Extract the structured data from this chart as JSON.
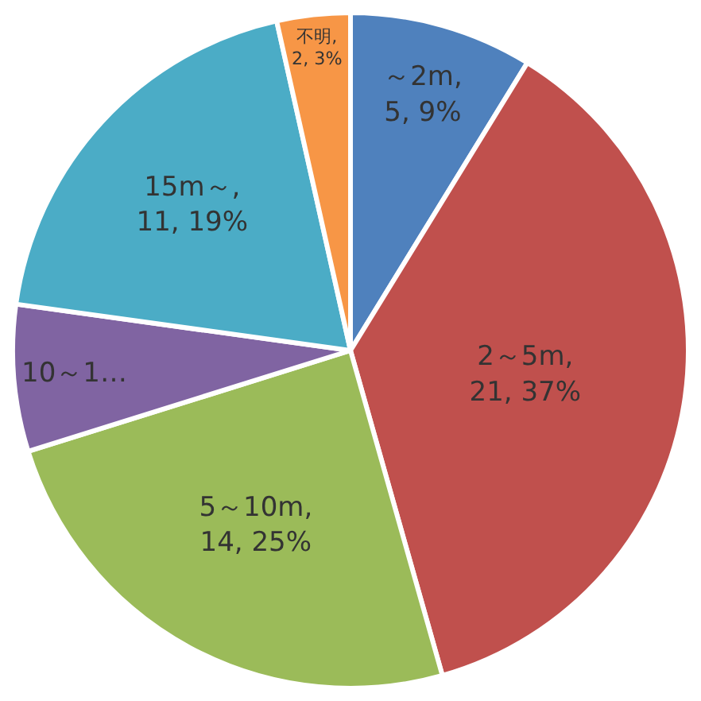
{
  "chart_data": {
    "type": "pie",
    "categories": [
      "～2m",
      "2～5m",
      "5～10m",
      "10～1…",
      "15m～",
      "不明"
    ],
    "values": [
      5,
      21,
      14,
      4,
      11,
      2
    ],
    "value_labels": [
      ",\n5, 9%",
      ",\n21, 37%",
      ",\n14, 25%",
      null,
      ",\n11, 19%",
      ",\n2, 3%"
    ],
    "colors": [
      "#4f81bd",
      "#c0504d",
      "#9bbb59",
      "#8064a2",
      "#4bacc6",
      "#f79646"
    ]
  }
}
